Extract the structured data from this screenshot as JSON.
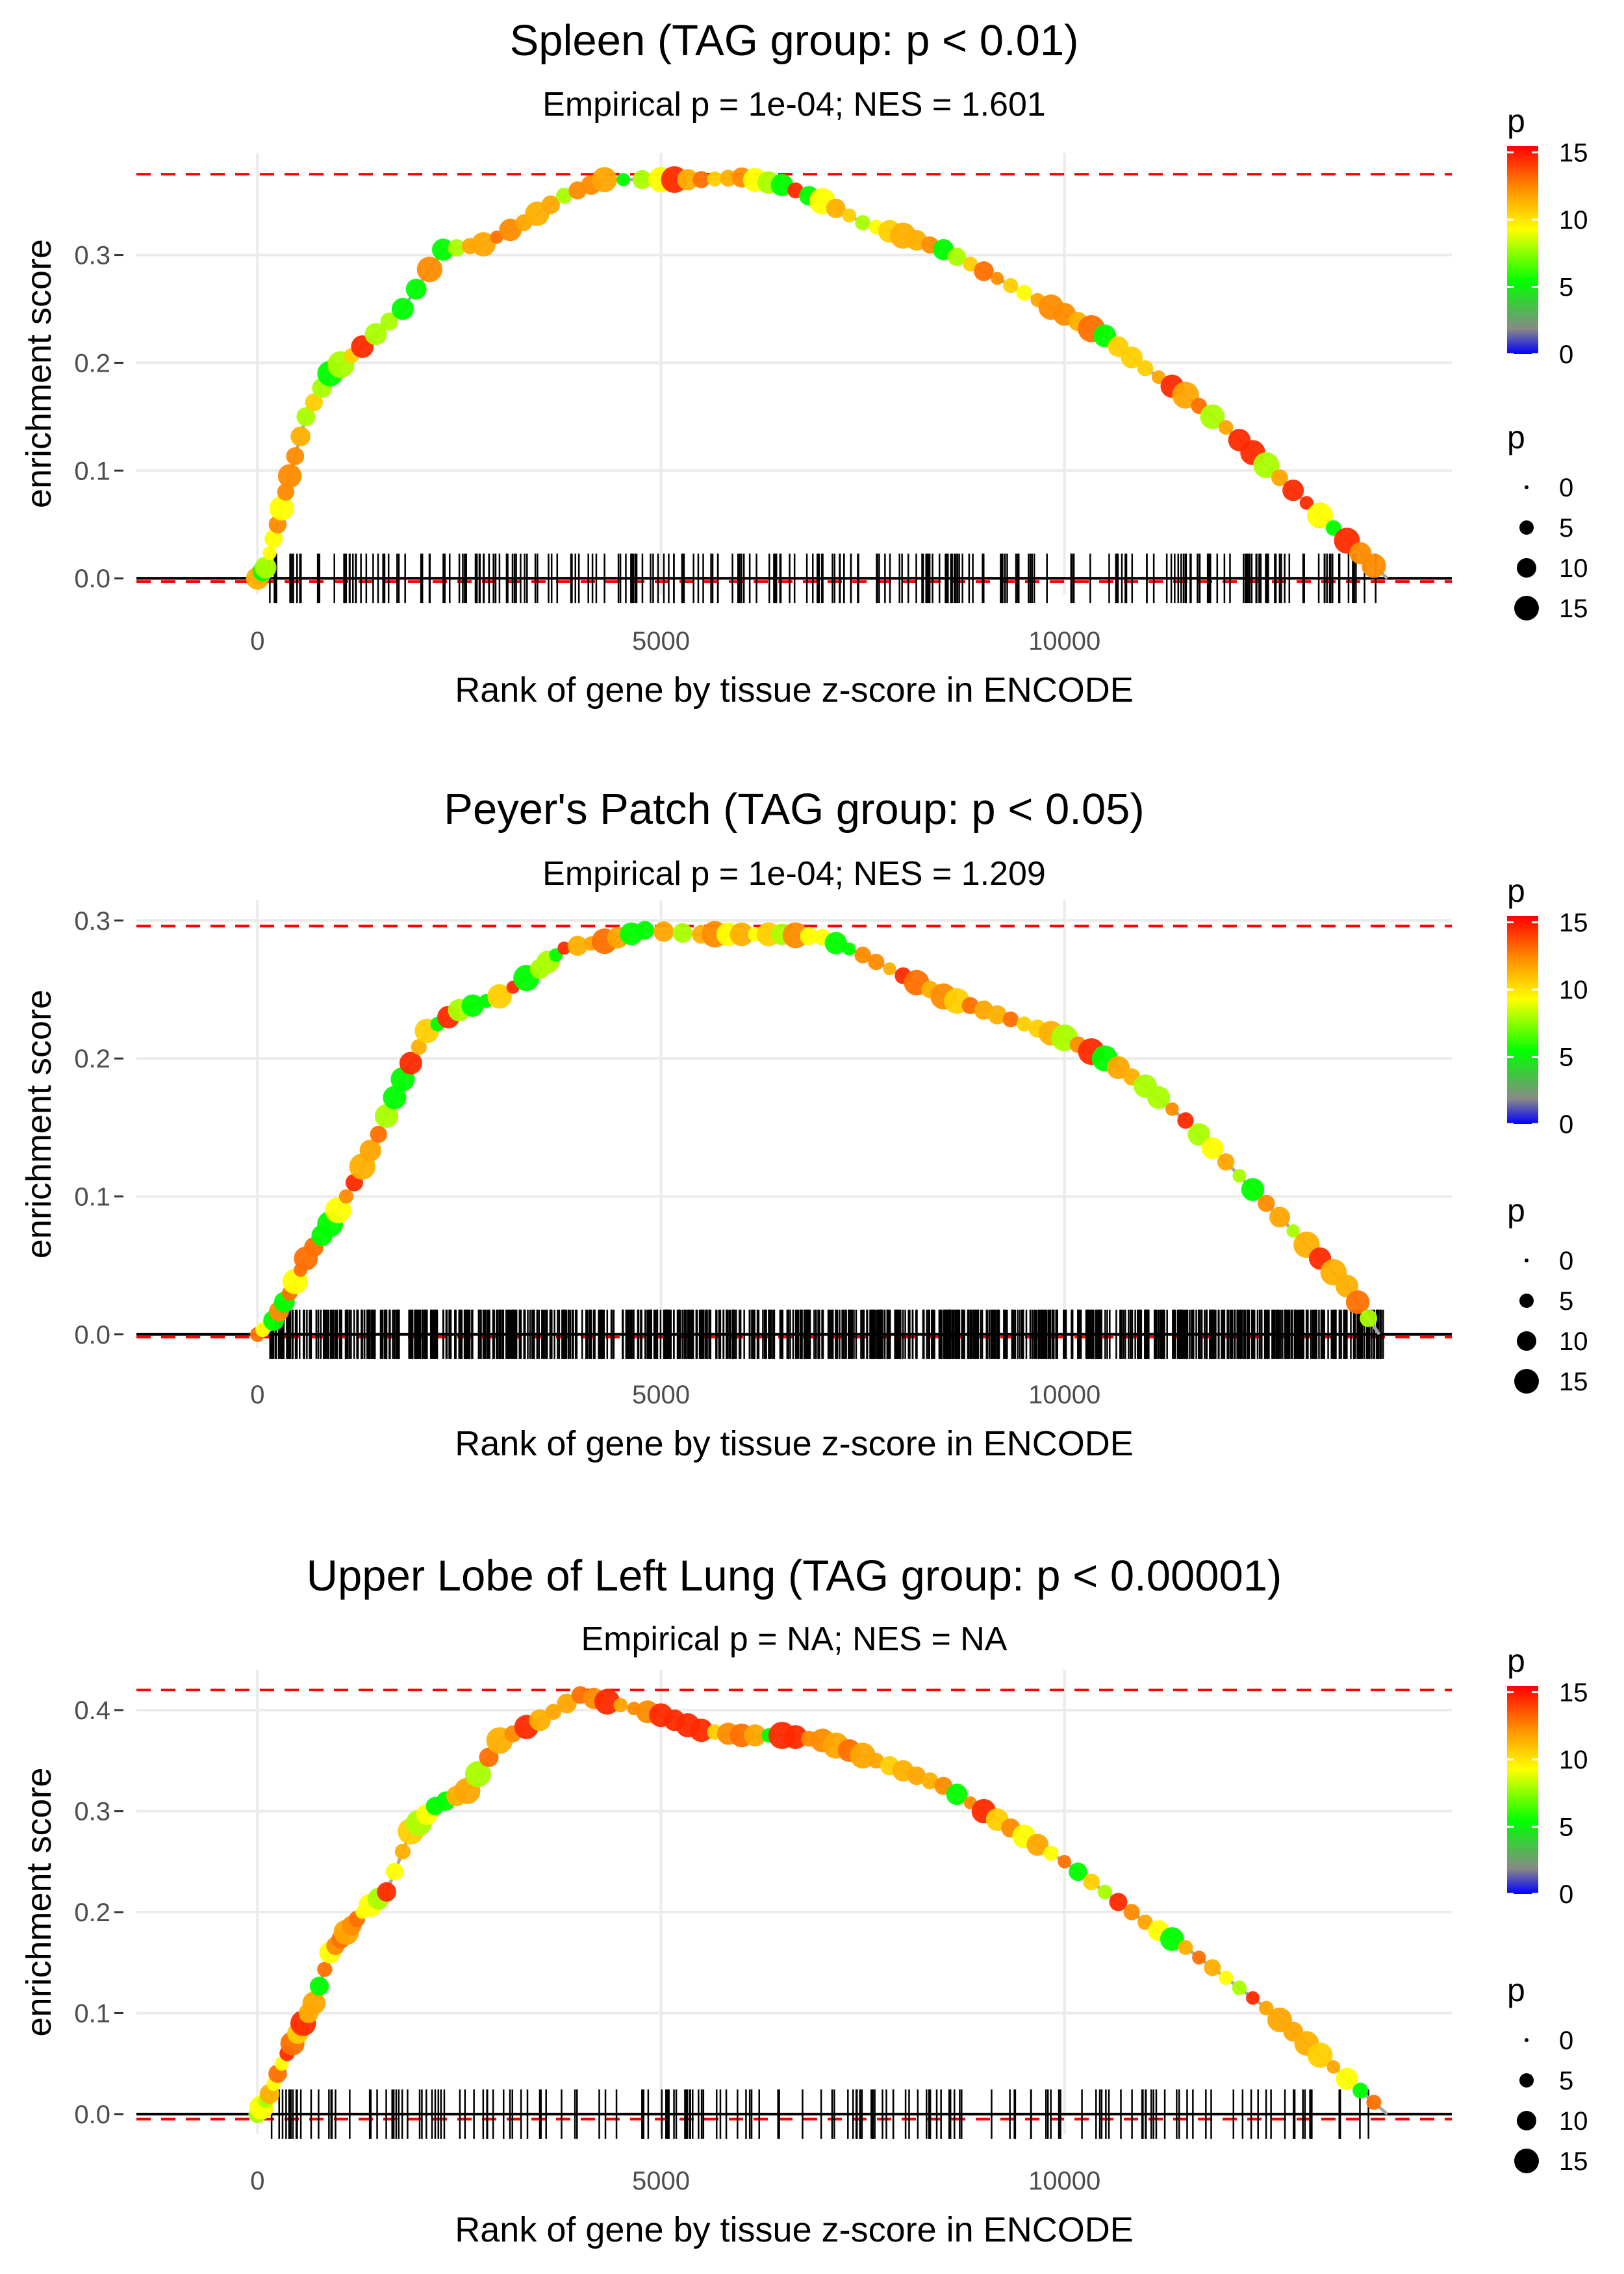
{
  "chart_data": [
    {
      "type": "line",
      "title": "Spleen (TAG group: p < 0.01)",
      "subtitle": "Empirical p = 1e-04; NES = 1.601",
      "xlabel": "Rank of gene by tissue z-score in ENCODE",
      "ylabel": "enrichment score",
      "xlim": [
        -1500,
        14800
      ],
      "ylim": [
        -0.015,
        0.395
      ],
      "x_ticks": [
        0,
        5000,
        10000
      ],
      "x_tick_labels": [
        "0",
        "5000",
        "10000"
      ],
      "y_ticks": [
        0.0,
        0.1,
        0.2,
        0.3
      ],
      "y_tick_labels": [
        "0.0",
        "0.1",
        "0.2",
        "0.3"
      ],
      "max_es": 0.375,
      "min_es": -0.003,
      "curve": [
        [
          0,
          0
        ],
        [
          100,
          0.01
        ],
        [
          250,
          0.05
        ],
        [
          400,
          0.095
        ],
        [
          600,
          0.15
        ],
        [
          900,
          0.19
        ],
        [
          1300,
          0.215
        ],
        [
          1800,
          0.25
        ],
        [
          2300,
          0.305
        ],
        [
          2800,
          0.31
        ],
        [
          3300,
          0.33
        ],
        [
          3800,
          0.355
        ],
        [
          4300,
          0.37
        ],
        [
          5000,
          0.37
        ],
        [
          5500,
          0.37
        ],
        [
          6000,
          0.372
        ],
        [
          6500,
          0.365
        ],
        [
          7000,
          0.35
        ],
        [
          7500,
          0.33
        ],
        [
          8000,
          0.318
        ],
        [
          8500,
          0.305
        ],
        [
          9000,
          0.285
        ],
        [
          9500,
          0.265
        ],
        [
          10000,
          0.245
        ],
        [
          10500,
          0.225
        ],
        [
          11000,
          0.195
        ],
        [
          11500,
          0.17
        ],
        [
          12000,
          0.14
        ],
        [
          12500,
          0.105
        ],
        [
          13000,
          0.07
        ],
        [
          13500,
          0.035
        ],
        [
          14000,
          0.0
        ]
      ],
      "rug_ranks_count": 260,
      "p_scale": {
        "color_title": "p",
        "color_ticks": [
          "0",
          "5",
          "10",
          "15"
        ],
        "size_title": "p",
        "size_labels": [
          "0",
          "5",
          "10",
          "15"
        ],
        "colors": [
          "#0000ff",
          "#888888",
          "#00ff00",
          "#ffff00",
          "#ff8c00",
          "#ff0000"
        ]
      }
    },
    {
      "type": "line",
      "title": "Peyer's Patch (TAG group: p < 0.05)",
      "subtitle": "Empirical p = 1e-04; NES = 1.209",
      "xlabel": "Rank of gene by tissue z-score in ENCODE",
      "ylabel": "enrichment score",
      "xlim": [
        -1500,
        14800
      ],
      "ylim": [
        -0.01,
        0.315
      ],
      "x_ticks": [
        0,
        5000,
        10000
      ],
      "x_tick_labels": [
        "0",
        "5000",
        "10000"
      ],
      "y_ticks": [
        0.0,
        0.1,
        0.2,
        0.3
      ],
      "y_tick_labels": [
        "0.0",
        "0.1",
        "0.2",
        "0.3"
      ],
      "max_es": 0.296,
      "min_es": -0.002,
      "curve": [
        [
          0,
          0
        ],
        [
          200,
          0.01
        ],
        [
          400,
          0.03
        ],
        [
          600,
          0.055
        ],
        [
          900,
          0.08
        ],
        [
          1200,
          0.11
        ],
        [
          1500,
          0.145
        ],
        [
          1800,
          0.185
        ],
        [
          2100,
          0.22
        ],
        [
          2500,
          0.235
        ],
        [
          3000,
          0.245
        ],
        [
          3500,
          0.265
        ],
        [
          3800,
          0.28
        ],
        [
          4300,
          0.285
        ],
        [
          4800,
          0.293
        ],
        [
          5500,
          0.29
        ],
        [
          6000,
          0.29
        ],
        [
          6500,
          0.29
        ],
        [
          7000,
          0.288
        ],
        [
          7500,
          0.275
        ],
        [
          8000,
          0.26
        ],
        [
          8500,
          0.245
        ],
        [
          9000,
          0.235
        ],
        [
          9500,
          0.225
        ],
        [
          10000,
          0.215
        ],
        [
          10500,
          0.2
        ],
        [
          11000,
          0.18
        ],
        [
          11500,
          0.155
        ],
        [
          12000,
          0.125
        ],
        [
          12500,
          0.095
        ],
        [
          13000,
          0.065
        ],
        [
          13500,
          0.035
        ],
        [
          13900,
          0.0
        ]
      ],
      "rug_ranks_count": 900,
      "p_scale": {
        "color_title": "p",
        "color_ticks": [
          "0",
          "5",
          "10",
          "15"
        ],
        "size_title": "p",
        "size_labels": [
          "0",
          "5",
          "10",
          "15"
        ],
        "colors": [
          "#0000ff",
          "#888888",
          "#00ff00",
          "#ffff00",
          "#ff8c00",
          "#ff0000"
        ]
      }
    },
    {
      "type": "line",
      "title": "Upper Lobe of Left Lung (TAG group: p < 0.00001)",
      "subtitle": "Empirical p = NA; NES = NA",
      "xlabel": "Rank of gene by tissue z-score in ENCODE",
      "ylabel": "enrichment score",
      "xlim": [
        -1500,
        14800
      ],
      "ylim": [
        -0.02,
        0.44
      ],
      "x_ticks": [
        0,
        5000,
        10000
      ],
      "x_tick_labels": [
        "0",
        "5000",
        "10000"
      ],
      "y_ticks": [
        0.0,
        0.1,
        0.2,
        0.3,
        0.4
      ],
      "y_tick_labels": [
        "0.0",
        "0.1",
        "0.2",
        "0.3",
        "0.4"
      ],
      "max_es": 0.42,
      "min_es": -0.005,
      "curve": [
        [
          0,
          0
        ],
        [
          150,
          0.02
        ],
        [
          300,
          0.05
        ],
        [
          500,
          0.08
        ],
        [
          700,
          0.11
        ],
        [
          900,
          0.16
        ],
        [
          1100,
          0.18
        ],
        [
          1300,
          0.2
        ],
        [
          1600,
          0.22
        ],
        [
          1900,
          0.28
        ],
        [
          2200,
          0.305
        ],
        [
          2600,
          0.32
        ],
        [
          3000,
          0.37
        ],
        [
          3500,
          0.39
        ],
        [
          4000,
          0.415
        ],
        [
          4500,
          0.405
        ],
        [
          5000,
          0.395
        ],
        [
          5500,
          0.38
        ],
        [
          6000,
          0.375
        ],
        [
          6500,
          0.375
        ],
        [
          7000,
          0.37
        ],
        [
          7500,
          0.355
        ],
        [
          8000,
          0.34
        ],
        [
          8500,
          0.325
        ],
        [
          9000,
          0.3
        ],
        [
          9500,
          0.275
        ],
        [
          10000,
          0.25
        ],
        [
          10500,
          0.22
        ],
        [
          11000,
          0.19
        ],
        [
          11500,
          0.165
        ],
        [
          12000,
          0.135
        ],
        [
          12500,
          0.105
        ],
        [
          13000,
          0.07
        ],
        [
          13500,
          0.035
        ],
        [
          14000,
          0.0
        ]
      ],
      "rug_ranks_count": 170,
      "p_scale": {
        "color_title": "p",
        "color_ticks": [
          "0",
          "5",
          "10",
          "15"
        ],
        "size_title": "p",
        "size_labels": [
          "0",
          "5",
          "10",
          "15"
        ],
        "colors": [
          "#0000ff",
          "#888888",
          "#00ff00",
          "#ffff00",
          "#ff8c00",
          "#ff0000"
        ]
      }
    }
  ]
}
